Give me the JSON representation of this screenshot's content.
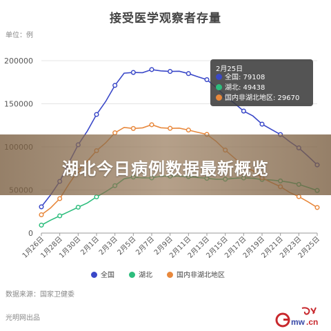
{
  "chart_data": {
    "type": "line",
    "title": "接受医学观察者存量",
    "unit_label": "单位：例",
    "x": [
      "1月26日",
      "1月27日",
      "1月28日",
      "1月29日",
      "1月30日",
      "1月31日",
      "2月1日",
      "2月2日",
      "2月3日",
      "2月4日",
      "2月5日",
      "2月6日",
      "2月7日",
      "2月8日",
      "2月9日",
      "2月10日",
      "2月11日",
      "2月12日",
      "2月13日",
      "2月14日",
      "2月15日",
      "2月16日",
      "2月17日",
      "2月18日",
      "2月19日",
      "2月20日",
      "2月21日",
      "2月22日",
      "2月23日",
      "2月24日",
      "2月25日"
    ],
    "x_tick_labels": [
      "1月26日",
      "1月28日",
      "1月30日",
      "2月1日",
      "2月3日",
      "2月5日",
      "2月7日",
      "2月9日",
      "2月11日",
      "2月13日",
      "2月15日",
      "2月17日",
      "2月19日",
      "2月21日",
      "2月23日",
      "2月25日"
    ],
    "y_ticks": [
      "0",
      "50000",
      "100000",
      "150000",
      "200000"
    ],
    "ylim": [
      0,
      200000
    ],
    "grid": "horizontal",
    "legend_position": "bottom",
    "series": [
      {
        "name": "全国",
        "color": "#3a48c8",
        "values": [
          30453,
          44132,
          59990,
          81947,
          102427,
          118478,
          137594,
          152700,
          171329,
          185555,
          186354,
          186045,
          189660,
          188183,
          187518,
          187728,
          185037,
          181386,
          177984,
          169039,
          158764,
          150539,
          141552,
          135881,
          126363,
          120302,
          114303,
          106089,
          98821,
          89228,
          79108
        ]
      },
      {
        "name": "湖北",
        "color": "#2dbd7d",
        "values": [
          9215,
          15000,
          20000,
          25000,
          30000,
          35000,
          42000,
          48000,
          55000,
          63000,
          65000,
          64000,
          64000,
          66000,
          66000,
          66000,
          65500,
          64500,
          63500,
          62500,
          62500,
          63500,
          64000,
          63500,
          62200,
          61500,
          60500,
          59000,
          56500,
          53000,
          49438
        ]
      },
      {
        "name": "国内非湖北地区",
        "color": "#e8883c",
        "values": [
          21238,
          29132,
          39990,
          56947,
          72427,
          83478,
          95594,
          104700,
          116329,
          122555,
          121354,
          122045,
          125660,
          122183,
          121518,
          121728,
          119537,
          116886,
          114484,
          106539,
          96264,
          87039,
          77552,
          72381,
          64163,
          58802,
          53803,
          47089,
          42321,
          36228,
          29670
        ]
      }
    ]
  },
  "tooltip": {
    "date": "2月25日",
    "rows": [
      {
        "text": "全国: 79108",
        "color": "#3a48c8"
      },
      {
        "text": "湖北: 49438",
        "color": "#2dbd7d"
      },
      {
        "text": "国内非湖北地区: 29670",
        "color": "#e8883c"
      }
    ]
  },
  "banner_text": "湖北今日病例数据最新概览",
  "source_text": "数据来源：国家卫健委",
  "credit_text": "光明网出品",
  "logo_text": "gmw.cn"
}
